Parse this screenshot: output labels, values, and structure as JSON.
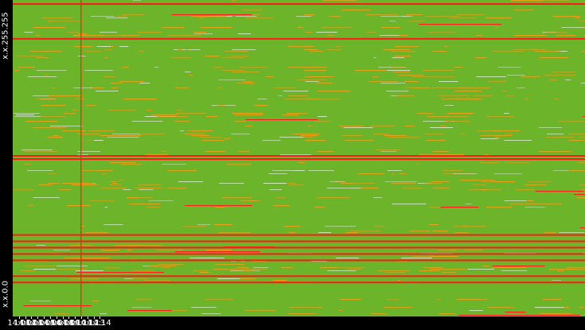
{
  "chart_data": {
    "type": "heatmap",
    "title": "",
    "xlabel": "",
    "ylabel": "",
    "y_range_labels": {
      "top": "x.x.255.255",
      "bottom": "x.x.0.0"
    },
    "x_tick_labels": [
      "14:01",
      "14:02",
      "14:03",
      "14:04",
      "14:05",
      "14:06",
      "14:07",
      "14:08",
      "14:09",
      "14:10",
      "14:11",
      "14:12",
      "14:13",
      "14:14"
    ],
    "x_range_minutes": [
      14.0,
      14.92
    ],
    "colors": {
      "background": "#000000",
      "low": "#6cb52a",
      "medium": "#e8a21a",
      "high": "#ff1a1a",
      "sparse": "#cfe6c0",
      "text": "#ffffff"
    },
    "full_width_hot_rows_fraction": [
      0.01,
      0.12,
      0.49,
      0.5,
      0.74,
      0.76,
      0.78,
      0.8,
      0.82,
      0.87,
      0.89
    ],
    "vertical_event_time": "14:11"
  }
}
